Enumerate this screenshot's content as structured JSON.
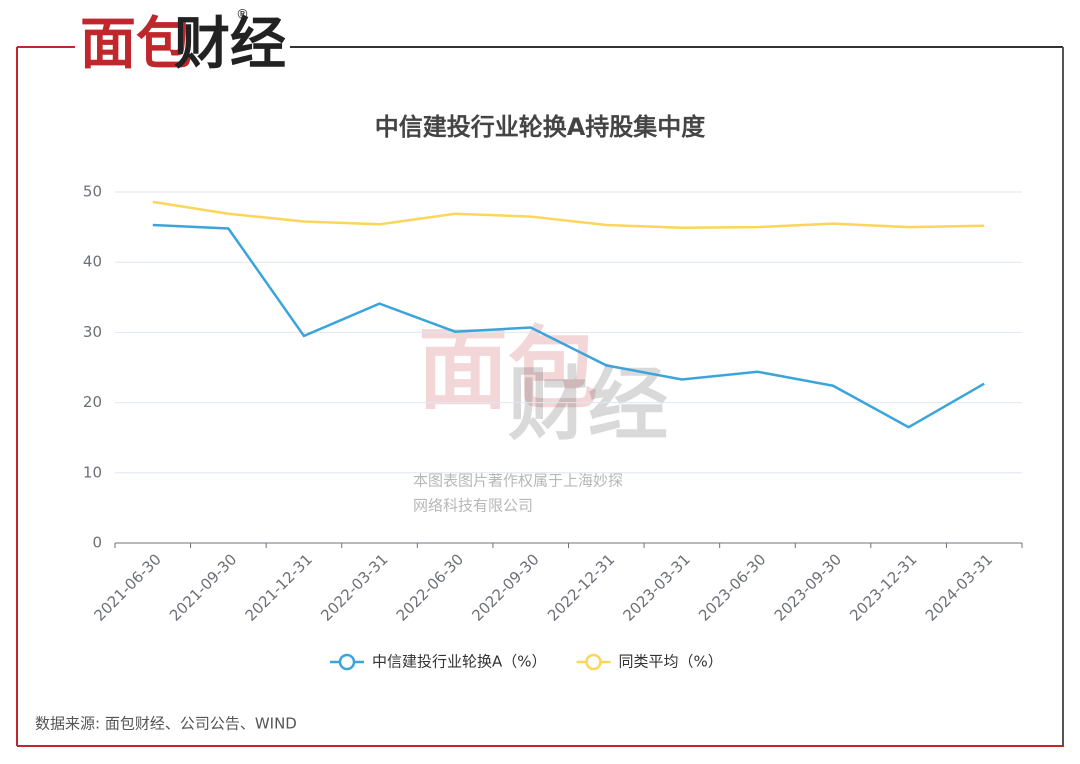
{
  "logo": {
    "part1": "面包",
    "part2": "财经",
    "mark": "®"
  },
  "watermark": {
    "line1": "本图表图片著作权属于上海妙探",
    "line2": "网络科技有限公司"
  },
  "source": "数据来源: 面包财经、公司公告、WIND",
  "chart_data": {
    "type": "line",
    "title": "中信建投行业轮换A持股集中度",
    "categories": [
      "2021-06-30",
      "2021-09-30",
      "2021-12-31",
      "2022-03-31",
      "2022-06-30",
      "2022-09-30",
      "2022-12-31",
      "2023-03-31",
      "2023-06-30",
      "2023-09-30",
      "2023-12-31",
      "2024-03-31"
    ],
    "series": [
      {
        "name": "中信建投行业轮换A（%）",
        "color": "#3ba5db",
        "values": [
          45.3,
          44.8,
          29.5,
          34.1,
          30.1,
          30.7,
          25.3,
          23.3,
          24.4,
          22.4,
          16.5,
          22.7
        ]
      },
      {
        "name": "同类平均（%）",
        "color": "#fcd55a",
        "values": [
          48.6,
          46.9,
          45.8,
          45.4,
          46.9,
          46.5,
          45.3,
          44.9,
          45.0,
          45.5,
          45.0,
          45.2
        ]
      }
    ],
    "ylim": [
      0,
      50
    ],
    "yticks": [
      0,
      10,
      20,
      30,
      40,
      50
    ],
    "grid": true,
    "legend": "bottom"
  }
}
